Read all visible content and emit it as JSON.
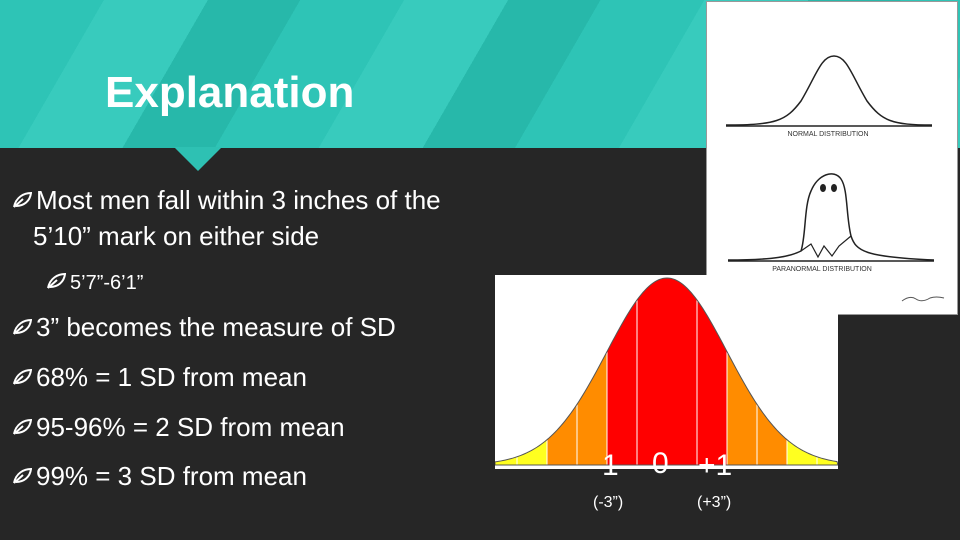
{
  "slide": {
    "title": "Explanation",
    "bullets": [
      {
        "text": "Most men fall within 3 inches of the 5’10” mark on either side",
        "sub": [
          "5’7”-6’1”"
        ]
      },
      {
        "text": "3” becomes the measure of SD"
      },
      {
        "text": "68% = 1 SD from mean"
      },
      {
        "text": "95-96% = 2 SD from mean"
      },
      {
        "text": "99% = 3 SD from mean"
      }
    ],
    "cartoon": {
      "labels": [
        "NORMAL DISTRIBUTION",
        "PARANORMAL DISTRIBUTION"
      ]
    },
    "figure": {
      "axis_labels": [
        "-1",
        "0",
        "+1"
      ],
      "sub_labels": [
        "(-3”)",
        "(+3”)"
      ]
    }
  }
}
